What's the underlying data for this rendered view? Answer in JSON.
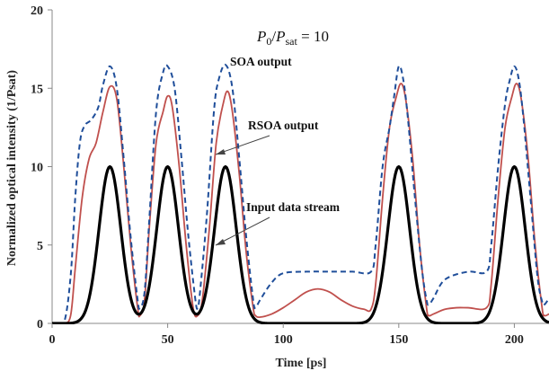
{
  "chart_data": {
    "type": "line",
    "title": "",
    "xlabel": "Time [ps]",
    "ylabel": "Normalized optical intensity (1/Psat)",
    "xlim": [
      0,
      215
    ],
    "ylim": [
      0,
      20
    ],
    "xticks": [
      "0",
      "50",
      "100",
      "150",
      "200"
    ],
    "yticks": [
      "0",
      "5",
      "10",
      "15",
      "20"
    ],
    "grid": false,
    "legend": "none",
    "annotation": {
      "base": "P",
      "sub0": "0",
      "slash": "/",
      "sub1": "sat",
      "rest": " = 10"
    },
    "callouts": [
      "SOA output",
      "RSOA output",
      "Input data stream"
    ],
    "series": [
      {
        "name": "SOA output",
        "color": "#1f4e9a",
        "dash": "dashed",
        "x": [
          0,
          5,
          8,
          10,
          12,
          14,
          17,
          20,
          22,
          25,
          28,
          31,
          34,
          37,
          38,
          40,
          42,
          45,
          48,
          50,
          53,
          56,
          59,
          62,
          63,
          64,
          67,
          70,
          72,
          75,
          78,
          81,
          84,
          87,
          88,
          90,
          95,
          100,
          110,
          120,
          130,
          138,
          140,
          143,
          146,
          148,
          150,
          152,
          154,
          157,
          160,
          162,
          163,
          165,
          170,
          180,
          188,
          190,
          193,
          196,
          198,
          200,
          202,
          204,
          207,
          210,
          212,
          213,
          215
        ],
        "values": [
          0,
          0,
          3,
          8,
          11.5,
          12.6,
          13.0,
          13.8,
          15.2,
          16.4,
          15.0,
          10.5,
          5.5,
          1.5,
          1.0,
          2.0,
          6.5,
          13.5,
          16.0,
          16.4,
          15.0,
          10.5,
          5.5,
          1.5,
          1.0,
          2.0,
          7.0,
          13.5,
          15.5,
          16.5,
          15.0,
          10.5,
          5.5,
          1.5,
          1.0,
          1.5,
          2.6,
          3.2,
          3.3,
          3.3,
          3.3,
          3.3,
          5.0,
          10.0,
          12.5,
          14.5,
          16.4,
          15.5,
          13.0,
          8.0,
          3.5,
          1.5,
          1.2,
          1.6,
          2.8,
          3.3,
          3.3,
          5.0,
          10.0,
          14.0,
          15.5,
          16.4,
          15.5,
          13.0,
          8.0,
          3.0,
          1.4,
          1.2,
          1.6
        ]
      },
      {
        "name": "RSOA output",
        "color": "#c0504d",
        "dash": "solid",
        "x": [
          0,
          5,
          8,
          10,
          13,
          16,
          19,
          22,
          25,
          28,
          31,
          34,
          37,
          38,
          40,
          42,
          45,
          48,
          50,
          52,
          55,
          58,
          61,
          63,
          65,
          68,
          71,
          74,
          76,
          78,
          81,
          84,
          87,
          88,
          90,
          95,
          100,
          105,
          110,
          115,
          120,
          125,
          130,
          135,
          138,
          140,
          143,
          146,
          149,
          151,
          153,
          156,
          159,
          162,
          163,
          165,
          170,
          175,
          180,
          188,
          190,
          193,
          196,
          199,
          201,
          203,
          206,
          209,
          212,
          213,
          215
        ],
        "values": [
          0,
          0,
          0.5,
          3.5,
          8.0,
          10.5,
          11.5,
          13.5,
          15.1,
          14.3,
          10.0,
          5.0,
          1.0,
          0.5,
          1.5,
          6.0,
          11.5,
          13.5,
          14.5,
          13.8,
          10.0,
          5.0,
          1.0,
          0.5,
          1.5,
          6.0,
          11.5,
          14.0,
          14.8,
          13.5,
          9.5,
          4.5,
          1.0,
          0.5,
          0.4,
          0.6,
          1.0,
          1.5,
          2.0,
          2.2,
          2.0,
          1.5,
          1.1,
          0.9,
          0.9,
          2.5,
          8.0,
          12.5,
          14.5,
          15.3,
          14.3,
          10.5,
          5.0,
          1.0,
          0.5,
          0.6,
          0.9,
          1.0,
          1.0,
          1.0,
          2.5,
          8.0,
          12.5,
          14.5,
          15.3,
          14.3,
          10.5,
          5.0,
          1.0,
          0.5,
          0.6
        ]
      },
      {
        "name": "Input data stream",
        "color": "#000000",
        "dash": "solid",
        "pulse_centers": [
          25,
          50,
          75,
          150,
          200
        ],
        "pulse_peak": 10,
        "pulse_sigma": 4.7,
        "x_step": 0.5
      }
    ]
  }
}
